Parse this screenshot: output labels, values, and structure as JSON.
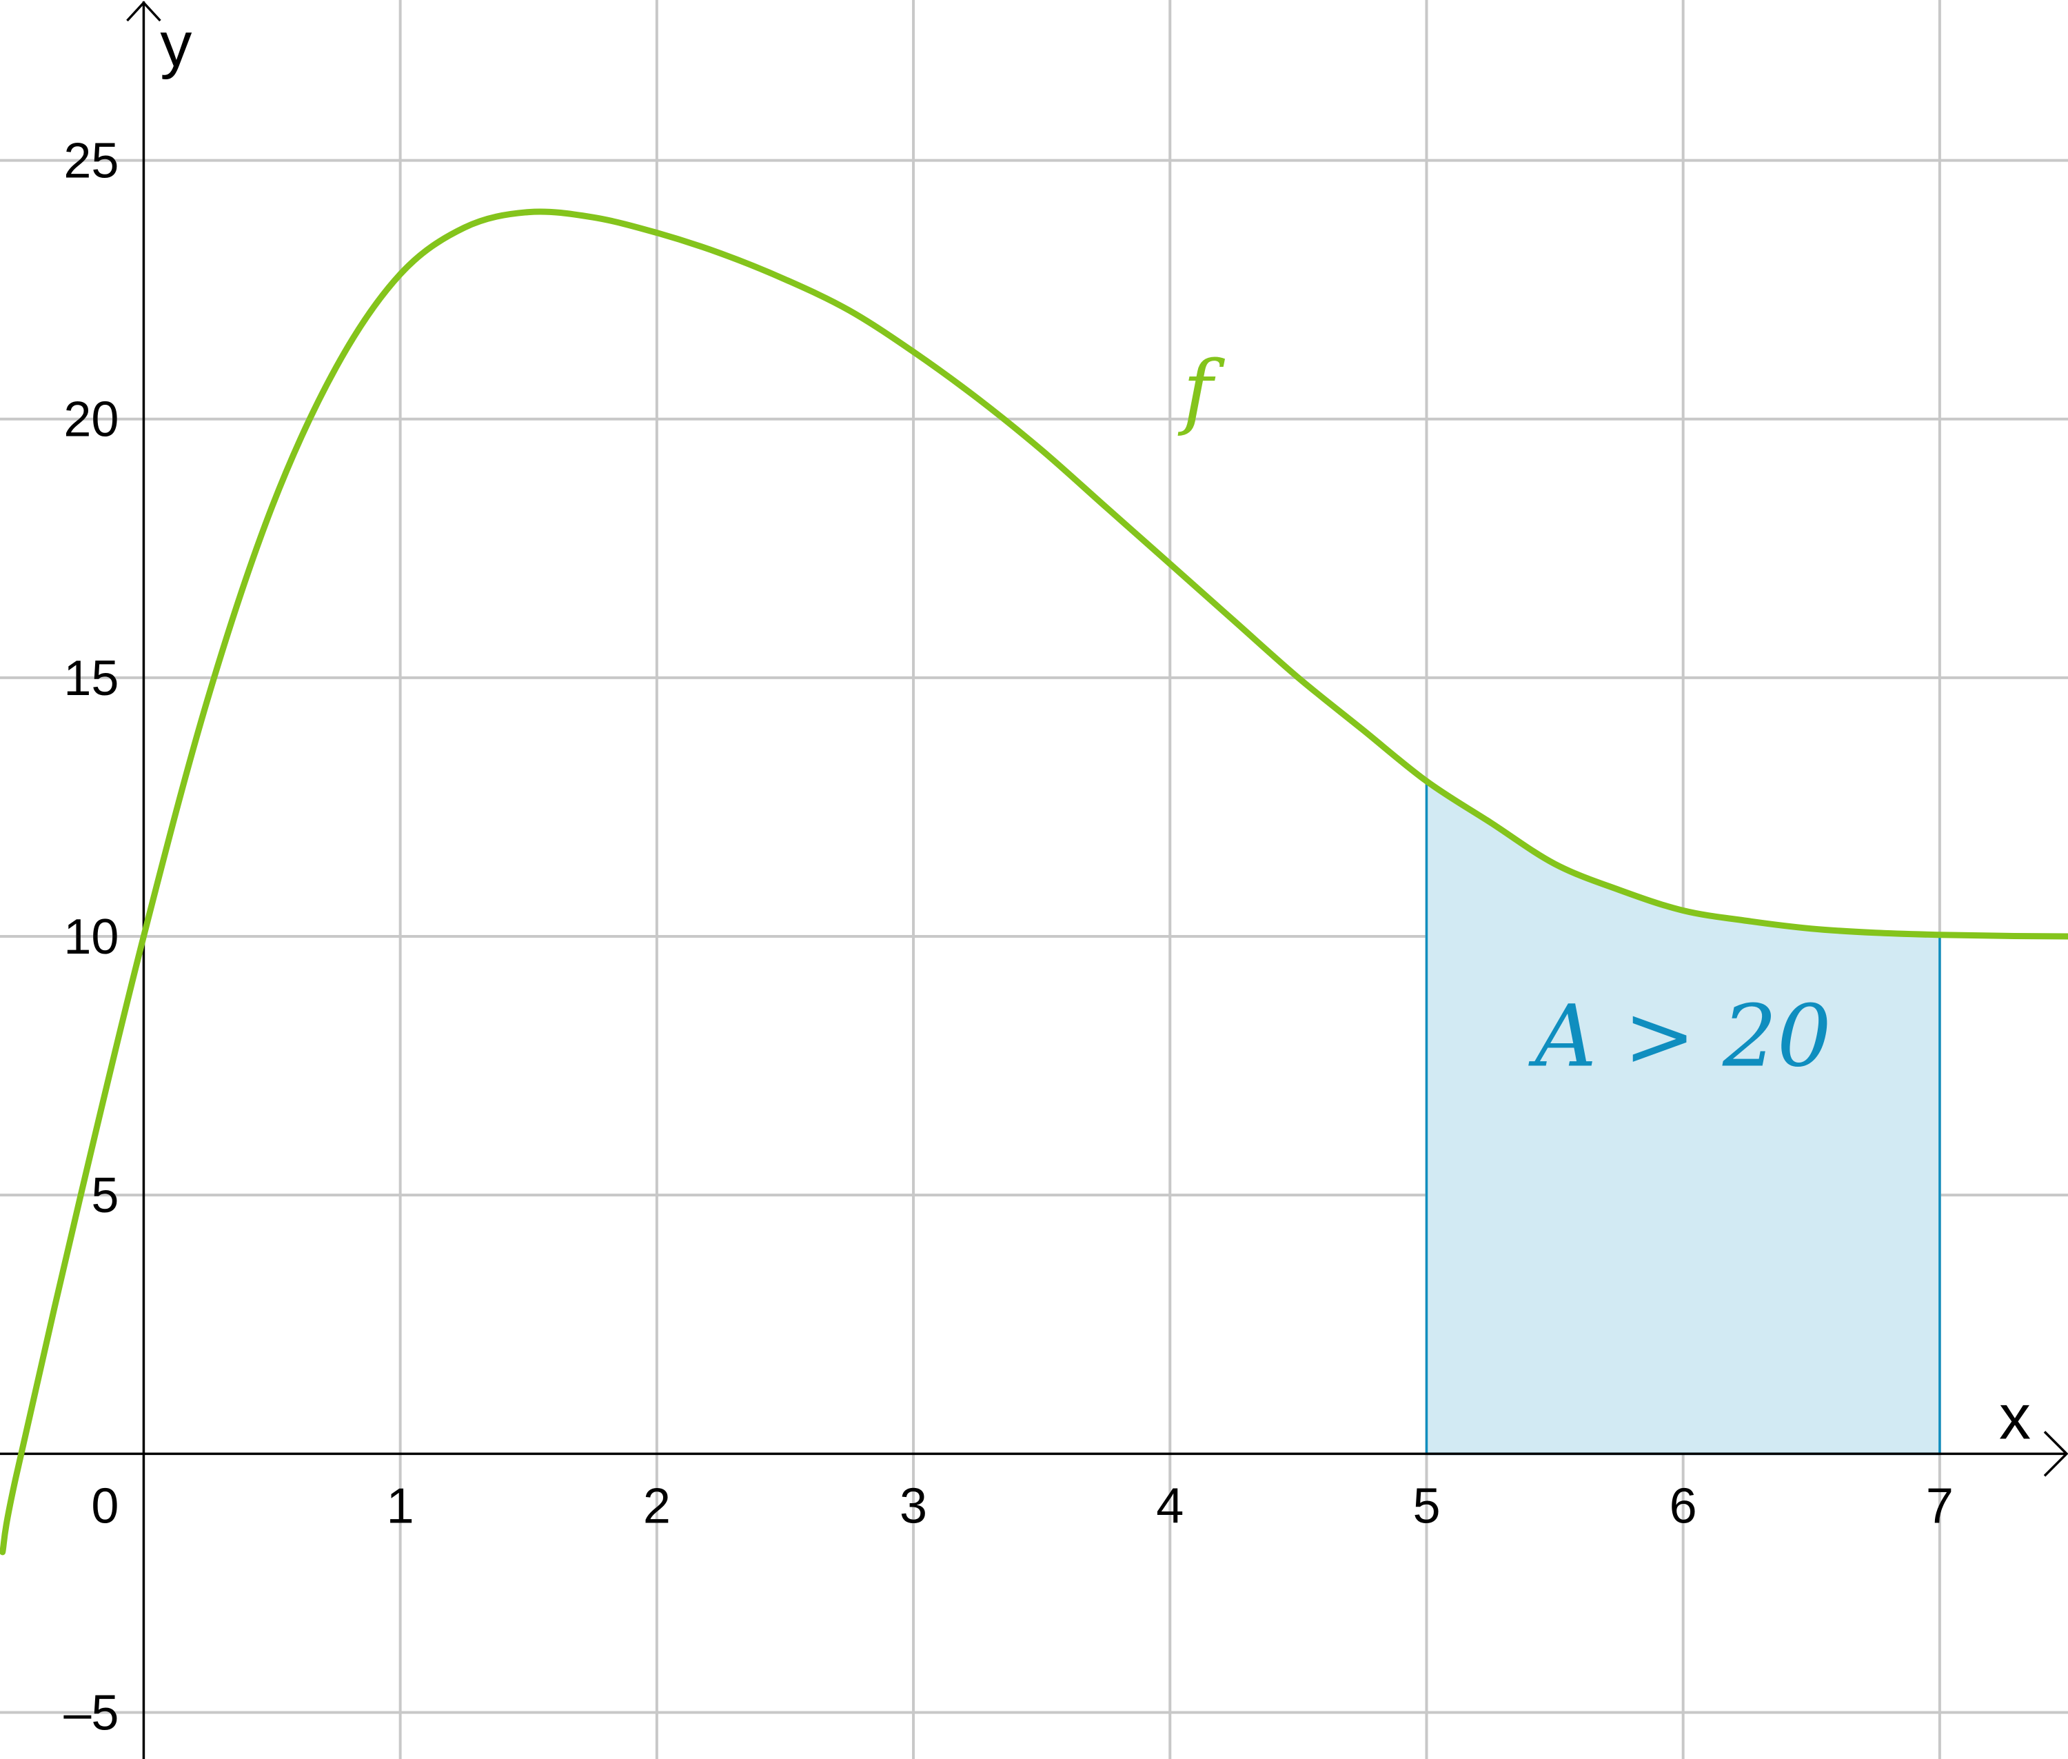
{
  "chart_data": {
    "type": "area",
    "xlabel": "x",
    "ylabel": "y",
    "xlim": [
      -0.56,
      7.5
    ],
    "ylim": [
      -5.9,
      28.1
    ],
    "grid": true,
    "x_ticks": [
      1,
      2,
      3,
      4,
      5,
      6,
      7
    ],
    "y_ticks": [
      -5,
      5,
      10,
      15,
      20,
      25
    ],
    "x_tick_labels": [
      "1",
      "2",
      "3",
      "4",
      "5",
      "6",
      "7"
    ],
    "y_tick_labels": [
      "–5",
      "5",
      "10",
      "15",
      "20",
      "25"
    ],
    "origin_label": "0",
    "series": [
      {
        "name": "f",
        "color": "#84c41c",
        "x": [
          -0.55,
          -0.5,
          -0.25,
          0,
          0.25,
          0.5,
          0.75,
          1,
          1.25,
          1.5,
          1.75,
          2,
          2.25,
          2.5,
          2.75,
          3,
          3.25,
          3.5,
          3.75,
          4,
          4.25,
          4.5,
          4.75,
          5,
          5.25,
          5.5,
          5.75,
          6,
          6.25,
          6.5,
          6.75,
          7,
          7.25,
          7.5
        ],
        "y": [
          -1.9,
          -0.5,
          4.9,
          10.0,
          14.6,
          18.3,
          21.0,
          22.8,
          23.7,
          24.0,
          23.9,
          23.6,
          23.2,
          22.7,
          22.1,
          21.3,
          20.4,
          19.4,
          18.3,
          17.2,
          16.1,
          15.0,
          14.0,
          13.0,
          12.2,
          11.4,
          10.9,
          10.5,
          10.3,
          10.15,
          10.07,
          10.03,
          10.01,
          10.0
        ]
      }
    ],
    "shaded_region": {
      "x_from": 5,
      "x_to": 7,
      "color": "#0f8ebf",
      "fill_color": "#d2eaf3",
      "label": "A > 20"
    },
    "annotations": [
      {
        "text": "f",
        "x": 4.05,
        "y": 20.0,
        "color": "#84c41c"
      },
      {
        "text": "A > 20",
        "x": 6.0,
        "y": 7.5,
        "color": "#0f8ebf"
      }
    ]
  }
}
